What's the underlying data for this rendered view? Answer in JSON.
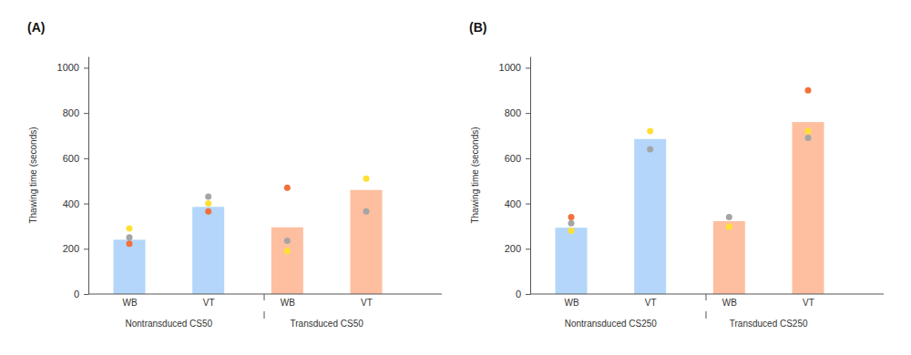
{
  "chart_data": [
    {
      "type": "bar",
      "title": "(A)",
      "y_label": "Thawing time (seconds)",
      "categories": [
        "WB",
        "VT",
        "WB",
        "VT"
      ],
      "group_labels": [
        "Nontransduced CS50",
        "Transduced CS50"
      ],
      "ylim": [
        0,
        1050
      ],
      "yticks": [
        0,
        200,
        400,
        600,
        800,
        1000
      ],
      "series": [
        {
          "type": "bar",
          "colors": [
            "#b3d6fa",
            "#b3d6fa",
            "#fdbfa0",
            "#fdbfa0"
          ],
          "values": [
            240,
            385,
            295,
            460
          ]
        },
        {
          "type": "scatter",
          "marker": "circle",
          "color": "#a5a5a5",
          "values": [
            250,
            430,
            235,
            365
          ]
        },
        {
          "type": "scatter",
          "marker": "circle",
          "color": "#ffe033",
          "values": [
            290,
            400,
            190,
            510
          ]
        },
        {
          "type": "scatter",
          "marker": "circle",
          "color": "#f2703a",
          "values": [
            222,
            365,
            470,
            null
          ]
        }
      ]
    },
    {
      "type": "bar",
      "title": "(B)",
      "y_label": "Thawing time (seconds)",
      "categories": [
        "WB",
        "VT",
        "WB",
        "VT"
      ],
      "group_labels": [
        "Nontransduced CS250",
        "Transduced CS250"
      ],
      "ylim": [
        0,
        1050
      ],
      "yticks": [
        0,
        200,
        400,
        600,
        800,
        1000
      ],
      "series": [
        {
          "type": "bar",
          "colors": [
            "#b3d6fa",
            "#b3d6fa",
            "#fdbfa0",
            "#fdbfa0"
          ],
          "values": [
            293,
            685,
            322,
            760
          ]
        },
        {
          "type": "scatter",
          "marker": "circle",
          "color": "#a5a5a5",
          "values": [
            313,
            640,
            340,
            690
          ]
        },
        {
          "type": "scatter",
          "marker": "circle",
          "color": "#ffe033",
          "values": [
            280,
            720,
            298,
            720
          ]
        },
        {
          "type": "scatter",
          "marker": "circle",
          "color": "#f2703a",
          "values": [
            340,
            null,
            null,
            900
          ]
        }
      ]
    }
  ]
}
